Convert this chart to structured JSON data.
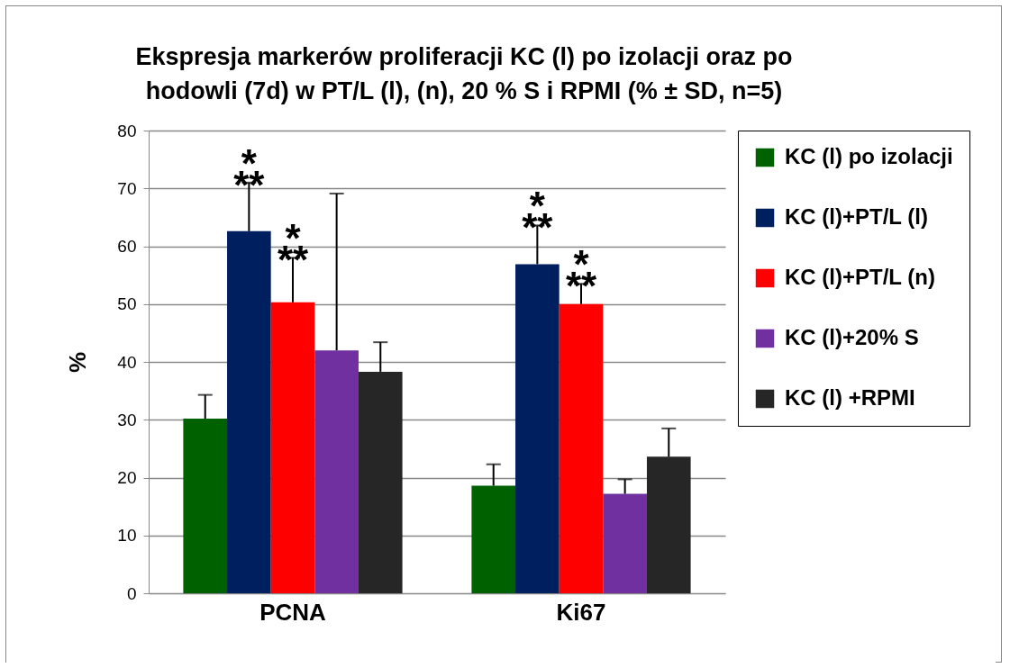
{
  "chart_data": {
    "type": "bar",
    "title": "Ekspresja markerów proliferacji KC (l) po izolacji oraz po\nhodowli (7d) w PT/L (l), (n), 20 % S i RPMI (% ± SD, n=5)",
    "ylabel": "%",
    "categories": [
      "PCNA",
      "Ki67"
    ],
    "series": [
      {
        "name": "KC (l) po izolacji",
        "color": "#006100",
        "values": [
          30.2,
          18.6
        ],
        "errors": [
          4.1,
          3.7
        ]
      },
      {
        "name": "KC (l)+PT/L (l)",
        "color": "#001f5f",
        "values": [
          62.6,
          56.9
        ],
        "errors": [
          8.4,
          6.7
        ]
      },
      {
        "name": "KC (l)+PT/L (n)",
        "color": "#ff0000",
        "values": [
          50.3,
          50.0
        ],
        "errors": [
          7.7,
          3.5
        ]
      },
      {
        "name": "KC (l)+20% S",
        "color": "#7030a0",
        "values": [
          42.0,
          17.2
        ],
        "errors": [
          27.1,
          2.5
        ]
      },
      {
        "name": "KC (l) +RPMI",
        "color": "#262626",
        "values": [
          38.3,
          23.6
        ],
        "errors": [
          5.1,
          4.9
        ]
      }
    ],
    "ylim": [
      0,
      80
    ],
    "yticks": [
      0,
      10,
      20,
      30,
      40,
      50,
      60,
      70,
      80
    ],
    "grid": "y",
    "legend": "right",
    "annotations": [
      "**",
      "*",
      "**",
      "*",
      "**",
      "*",
      "**",
      "*"
    ]
  }
}
